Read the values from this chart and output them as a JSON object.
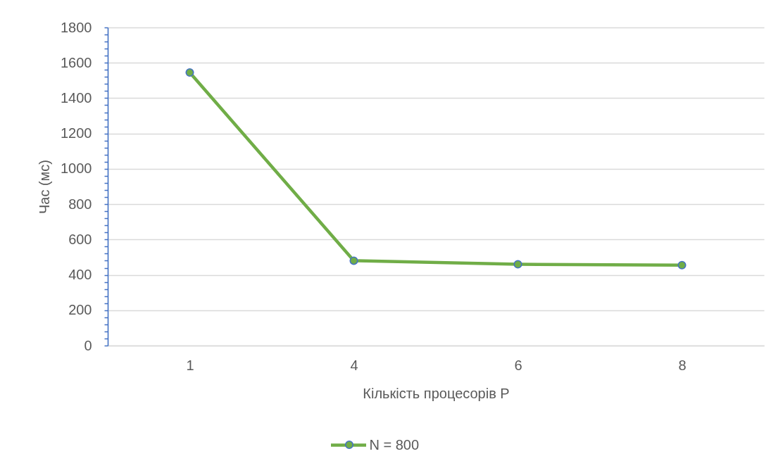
{
  "chart_data": {
    "type": "line",
    "xlabel": "Кількість процесорів P",
    "ylabel": "Час (мс)",
    "categories": [
      "1",
      "4",
      "6",
      "8"
    ],
    "series": [
      {
        "name": "N = 800",
        "color": "#70ad47",
        "values": [
          1545,
          480,
          460,
          455
        ]
      }
    ],
    "ylim": [
      0,
      1800
    ],
    "yticks": [
      0,
      {
        "value": 40,
        "label": null
      },
      {
        "value": 80,
        "label": null
      },
      {
        "value": 120,
        "label": null
      },
      {
        "value": 160,
        "label": null
      },
      200,
      {
        "value": 240,
        "label": null
      },
      {
        "value": 280,
        "label": null
      },
      {
        "value": 320,
        "label": null
      },
      {
        "value": 360,
        "label": null
      },
      400,
      {
        "value": 440,
        "label": null
      },
      {
        "value": 480,
        "label": null
      },
      {
        "value": 520,
        "label": null
      },
      {
        "value": 560,
        "label": null
      },
      600,
      {
        "value": 640,
        "label": null
      },
      {
        "value": 680,
        "label": null
      },
      {
        "value": 720,
        "label": null
      },
      {
        "value": 760,
        "label": null
      },
      800,
      {
        "value": 840,
        "label": null
      },
      {
        "value": 880,
        "label": null
      },
      {
        "value": 920,
        "label": null
      },
      {
        "value": 960,
        "label": null
      },
      1000,
      {
        "value": 1040,
        "label": null
      },
      {
        "value": 1080,
        "label": null
      },
      {
        "value": 1120,
        "label": null
      },
      {
        "value": 1160,
        "label": null
      },
      1200,
      {
        "value": 1240,
        "label": null
      },
      {
        "value": 1280,
        "label": null
      },
      {
        "value": 1320,
        "label": null
      },
      {
        "value": 1360,
        "label": null
      },
      1400,
      {
        "value": 1440,
        "label": null
      },
      {
        "value": 1480,
        "label": null
      },
      {
        "value": 1520,
        "label": null
      },
      {
        "value": 1560,
        "label": null
      },
      1600,
      {
        "value": 1640,
        "label": null
      },
      {
        "value": 1680,
        "label": null
      },
      {
        "value": 1720,
        "label": null
      },
      {
        "value": 1760,
        "label": null
      },
      1800
    ],
    "grid": "y",
    "legend": "bottom",
    "marker": "circle",
    "line_style": "solid"
  }
}
